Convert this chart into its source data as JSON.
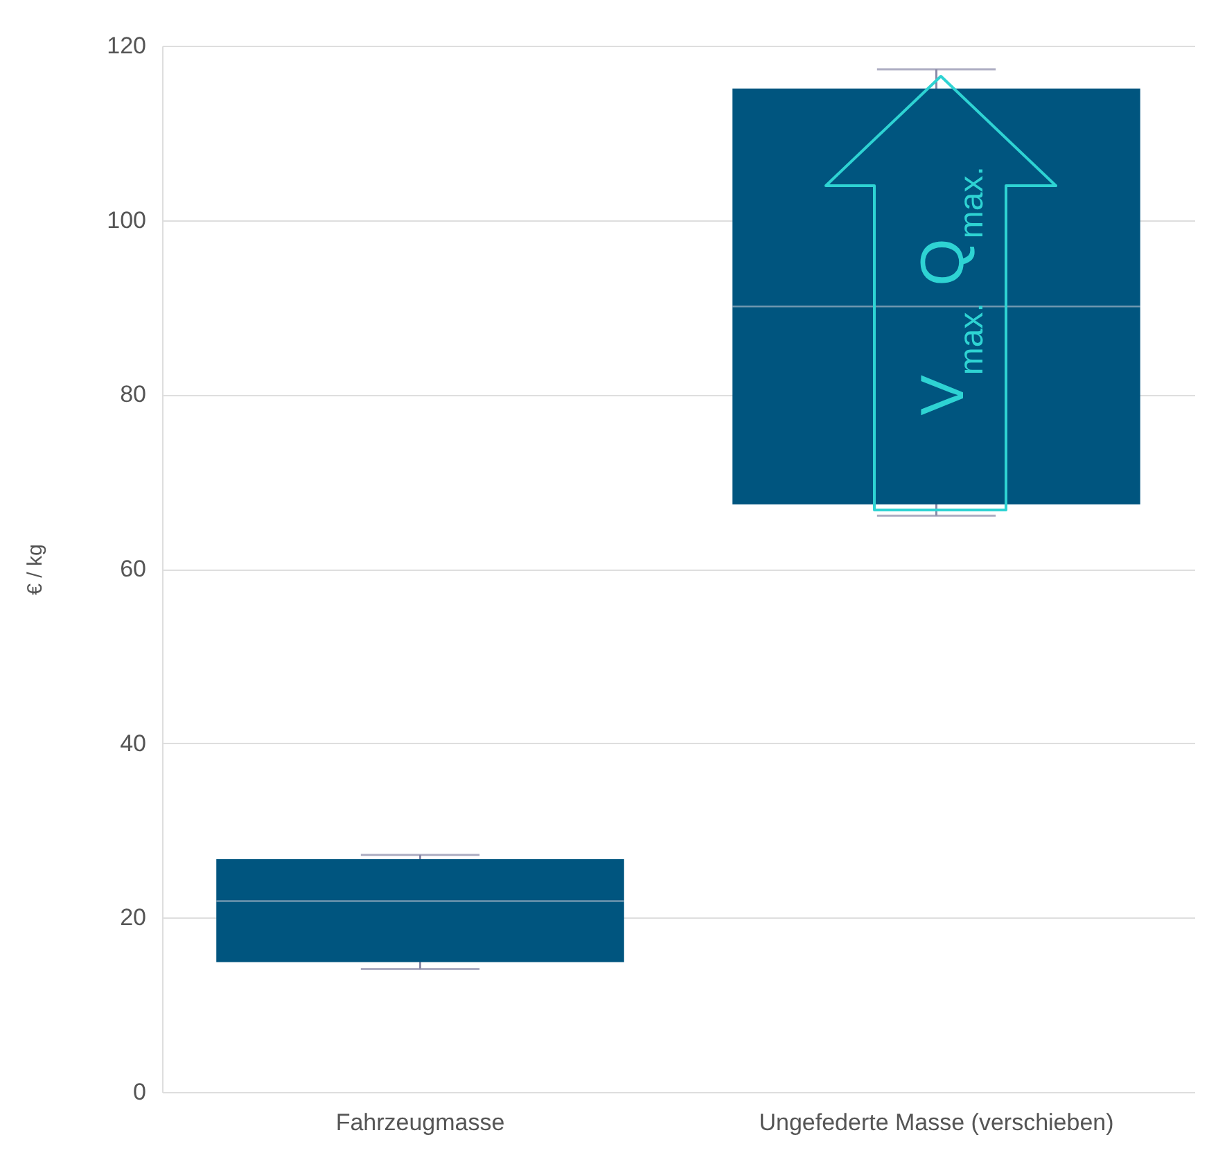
{
  "chart_data": {
    "type": "box",
    "ylabel": "€ / kg",
    "categories": [
      "Fahrzeugmasse",
      "Ungefederte Masse (verschieben)"
    ],
    "boxes": [
      {
        "low": 14.1,
        "q1": 14.9,
        "median": 21.9,
        "q3": 26.7,
        "high": 27.2
      },
      {
        "low": 66.1,
        "q1": 67.4,
        "median": 90.1,
        "q3": 115.1,
        "high": 117.3
      }
    ],
    "color": "#00557f",
    "ylim": [
      0,
      120
    ],
    "yticks": [
      0,
      20,
      40,
      60,
      80,
      100,
      120
    ],
    "grid": "y",
    "annotations": [
      "V$_{max.}$ Q$_{max.}$"
    ]
  }
}
